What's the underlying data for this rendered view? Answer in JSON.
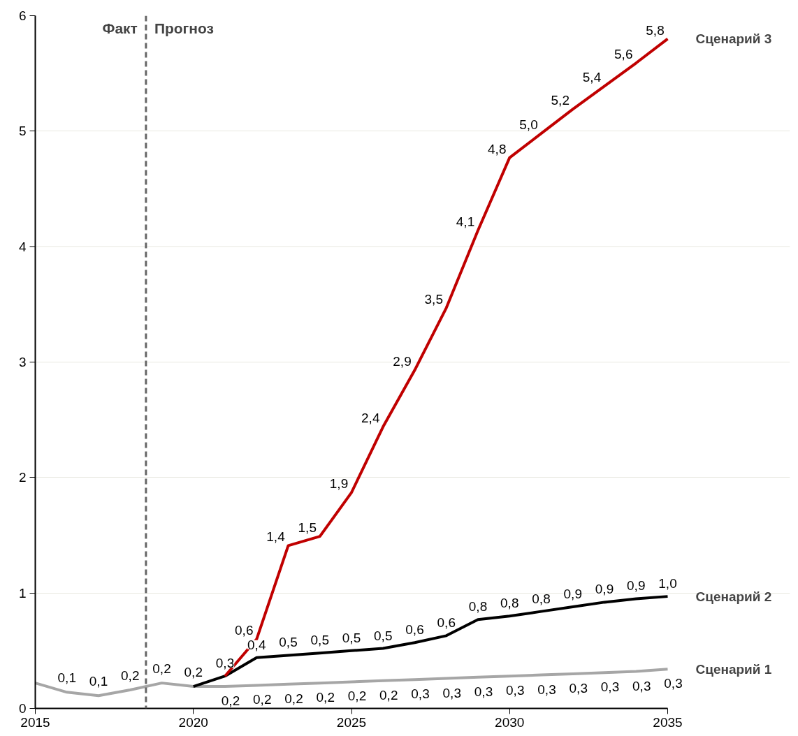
{
  "chart_data": {
    "type": "line",
    "xlim": [
      2015,
      2035
    ],
    "xticks": [
      2015,
      2020,
      2025,
      2030,
      2035
    ],
    "ylim": [
      0,
      6
    ],
    "yticks": [
      0,
      1,
      2,
      3,
      4,
      5,
      6
    ],
    "grid": "y",
    "legend": false,
    "marker": "none",
    "line_style": "solid",
    "series": [
      {
        "name": "Сценарий 1",
        "color": "#a6a6a6",
        "x": [
          2015,
          2016,
          2017,
          2018,
          2019,
          2020,
          2021,
          2022,
          2023,
          2024,
          2025,
          2026,
          2027,
          2028,
          2029,
          2030,
          2031,
          2032,
          2033,
          2034,
          2035
        ],
        "values": [
          0.22,
          0.14,
          0.11,
          0.16,
          0.22,
          0.19,
          0.19,
          0.2,
          0.21,
          0.22,
          0.23,
          0.24,
          0.25,
          0.26,
          0.27,
          0.28,
          0.29,
          0.3,
          0.31,
          0.32,
          0.34
        ],
        "value_labels": [
          null,
          "0,1",
          "0,1",
          "0,2",
          "0,2",
          "0,2",
          "0,2",
          "0,2",
          "0,2",
          "0,2",
          "0,2",
          "0,2",
          "0,3",
          "0,3",
          "0,3",
          "0,3",
          "0,3",
          "0,3",
          "0,3",
          "0,3",
          "0,3"
        ]
      },
      {
        "name": "Сценарий 2",
        "color": "#000000",
        "x": [
          2020,
          2021,
          2022,
          2023,
          2024,
          2025,
          2026,
          2027,
          2028,
          2029,
          2030,
          2031,
          2032,
          2033,
          2034,
          2035
        ],
        "values": [
          0.19,
          0.28,
          0.44,
          0.46,
          0.48,
          0.5,
          0.52,
          0.57,
          0.63,
          0.77,
          0.8,
          0.84,
          0.88,
          0.92,
          0.95,
          0.97
        ],
        "value_labels": [
          null,
          "0,3",
          "0,4",
          "0,5",
          "0,5",
          "0,5",
          "0,5",
          "0,6",
          "0,6",
          "0,8",
          "0,8",
          "0,8",
          "0,9",
          "0,9",
          "0,9",
          "1,0"
        ]
      },
      {
        "name": "Сценарий 3",
        "color": "#c00000",
        "x": [
          2021,
          2022,
          2023,
          2024,
          2025,
          2026,
          2027,
          2028,
          2029,
          2030,
          2031,
          2032,
          2033,
          2034,
          2035
        ],
        "values": [
          0.28,
          0.6,
          1.41,
          1.49,
          1.87,
          2.44,
          2.93,
          3.47,
          4.14,
          4.77,
          4.98,
          5.19,
          5.39,
          5.59,
          5.8
        ],
        "value_labels": [
          null,
          "0,6",
          "1,4",
          "1,5",
          "1,9",
          "2,4",
          "2,9",
          "3,5",
          "4,1",
          "4,8",
          "5,0",
          "5,2",
          "5,4",
          "5,6",
          "5,8"
        ]
      }
    ],
    "ref_lines": [
      {
        "axis": "x",
        "value": 2018.5,
        "label": null,
        "color": "#666666",
        "line_style": "dashed"
      }
    ],
    "annotations": [
      {
        "text": "Факт",
        "x": 2018.5,
        "y": 6
      },
      {
        "text": "Прогноз",
        "x": 2018.5,
        "y": 6
      }
    ]
  }
}
